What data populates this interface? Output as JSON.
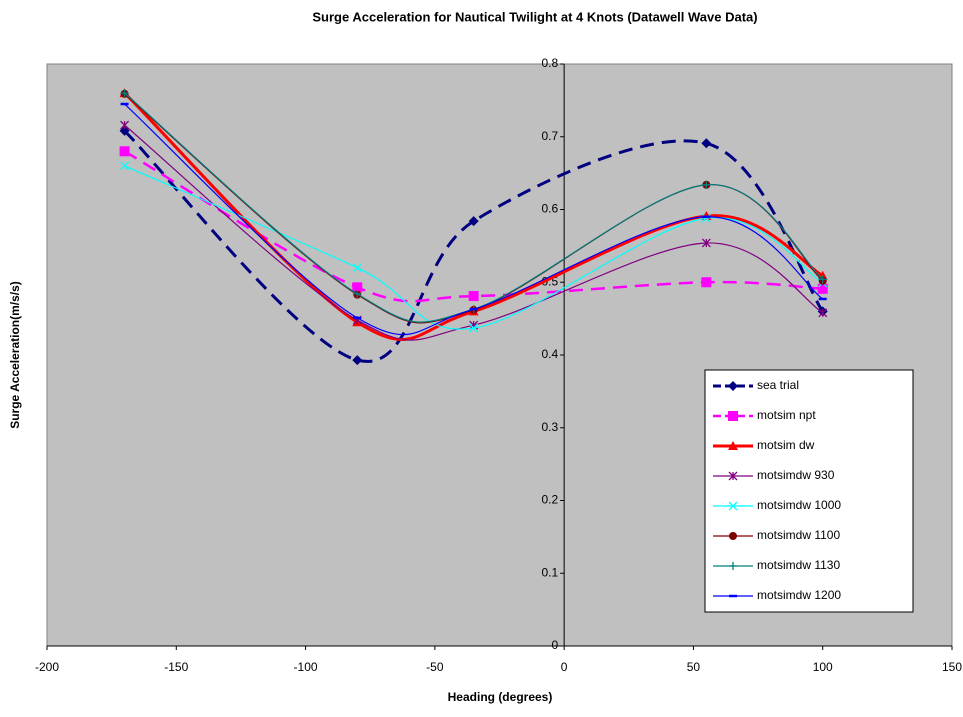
{
  "chart_data": {
    "type": "line",
    "title": "Surge Acceleration for  Nautical Twilight at 4 Knots (Datawell Wave Data)",
    "x_label": "Heading (degrees)",
    "y_label": "Surge Acceleration(m/s/s)",
    "x": [
      -170,
      -80,
      -35,
      55,
      100
    ],
    "xlim": [
      -200,
      150
    ],
    "xticks": [
      -200,
      -150,
      -100,
      -50,
      0,
      50,
      100,
      150
    ],
    "ylim": [
      0,
      0.8
    ],
    "yticks": [
      0,
      0.1,
      0.2,
      0.3,
      0.4,
      0.5,
      0.6,
      0.7,
      0.8
    ],
    "smooth": true,
    "background": "#c0c0c0",
    "series": [
      {
        "name": "sea trial",
        "color": "#000080",
        "width": 3,
        "dash": true,
        "marker": "diamond",
        "values": [
          0.708,
          0.393,
          0.584,
          0.691,
          0.46
        ]
      },
      {
        "name": "motsim npt",
        "color": "#ff00ff",
        "width": 2.5,
        "dash": true,
        "marker": "square",
        "values": [
          0.68,
          0.493,
          0.481,
          0.5,
          0.491
        ]
      },
      {
        "name": "motsim dw",
        "color": "#ff0000",
        "width": 3,
        "dash": false,
        "marker": "triangle",
        "values": [
          0.76,
          0.445,
          0.46,
          0.591,
          0.509
        ]
      },
      {
        "name": "motsimdw 930",
        "color": "#800080",
        "width": 1.2,
        "dash": false,
        "marker": "star",
        "values": [
          0.716,
          0.448,
          0.441,
          0.554,
          0.458
        ]
      },
      {
        "name": "motsimdw 1000",
        "color": "#00ffff",
        "width": 1.2,
        "dash": false,
        "marker": "x",
        "values": [
          0.66,
          0.52,
          0.437,
          0.588,
          0.499
        ]
      },
      {
        "name": "motsimdw 1100",
        "color": "#800000",
        "width": 1.2,
        "dash": false,
        "marker": "circle",
        "values": [
          0.759,
          0.483,
          0.462,
          0.634,
          0.502
        ]
      },
      {
        "name": "motsimdw 1130",
        "color": "#008080",
        "width": 1.2,
        "dash": false,
        "marker": "plus",
        "values": [
          0.76,
          0.484,
          0.463,
          0.634,
          0.504
        ]
      },
      {
        "name": "motsimdw 1200",
        "color": "#0000ff",
        "width": 1.2,
        "dash": false,
        "marker": "dash",
        "values": [
          0.745,
          0.451,
          0.463,
          0.59,
          0.477
        ]
      }
    ]
  }
}
